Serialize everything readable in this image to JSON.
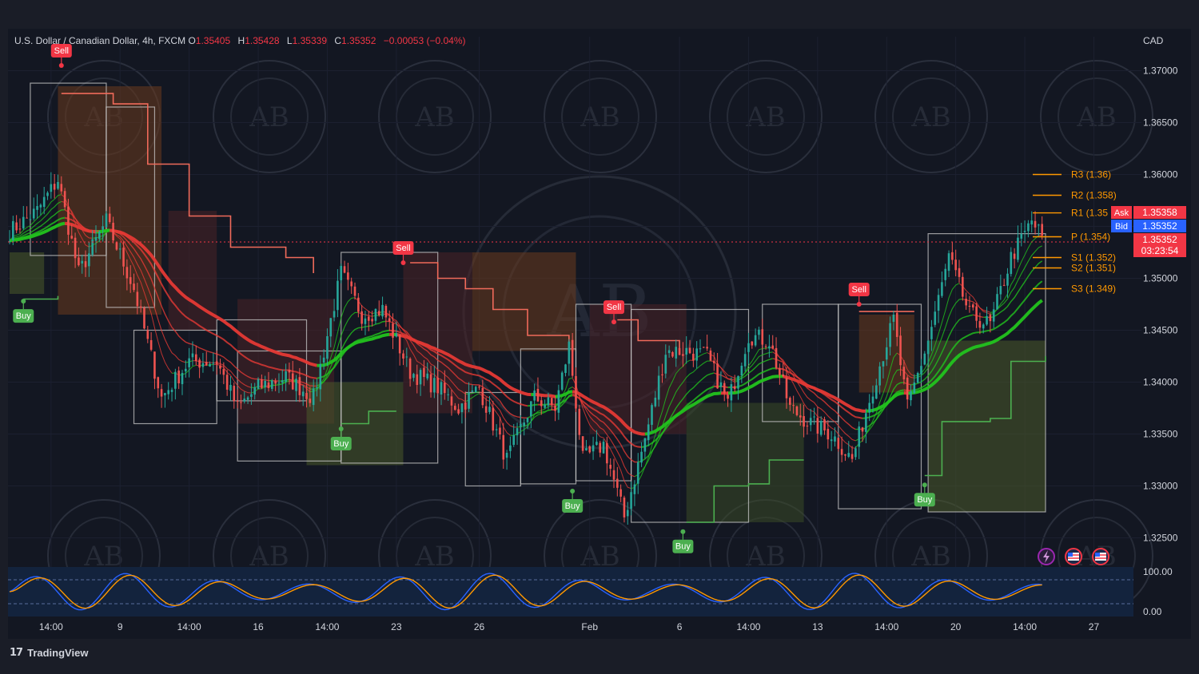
{
  "header": {
    "symbol": "U.S. Dollar / Canadian Dollar, 4h, FXCM",
    "o_label": "O",
    "o": "1.35405",
    "h_label": "H",
    "h": "1.35428",
    "l_label": "L",
    "l": "1.35339",
    "c_label": "C",
    "c": "1.35352",
    "change": "−0.00053 (−0.04%)"
  },
  "currency": "CAD",
  "brand": "TradingView",
  "quote": {
    "ask_label": "Ask",
    "ask": "1.35358",
    "bid_label": "Bid",
    "bid": "1.35352",
    "last": "1.35352",
    "countdown": "03:23:54"
  },
  "pivots": [
    {
      "label": "R3 (1.36)",
      "value": 1.36
    },
    {
      "label": "R2 (1.358)",
      "value": 1.358
    },
    {
      "label": "R1 (1.35",
      "value": 1.3563
    },
    {
      "label": "P (1.354)",
      "value": 1.354
    },
    {
      "label": "S1 (1.352)",
      "value": 1.352
    },
    {
      "label": "S2 (1.351)",
      "value": 1.351
    },
    {
      "label": "S3 (1.349)",
      "value": 1.349
    }
  ],
  "icons": [
    "lightning-icon",
    "us-flag-icon",
    "us-flag-icon"
  ],
  "colors": {
    "background": "#131722",
    "up": "#26a69a",
    "down": "#ef5350",
    "ema_red": "#e53935",
    "ema_green": "#22c31e",
    "buy": "#4caf50",
    "sell": "#f23645",
    "pivot": "#ff9800",
    "ask": "#f23645",
    "bid": "#2962ff"
  },
  "chart_data": {
    "type": "candlestick",
    "ylim": [
      1.3225,
      1.3725
    ],
    "y_ticks": [
      {
        "label": "1.37000",
        "value": 1.37
      },
      {
        "label": "1.36500",
        "value": 1.365
      },
      {
        "label": "1.36000",
        "value": 1.36
      },
      {
        "label": "1.35500",
        "value": 1.355
      },
      {
        "label": "1.35000",
        "value": 1.35
      },
      {
        "label": "1.34500",
        "value": 1.345
      },
      {
        "label": "1.34000",
        "value": 1.34
      },
      {
        "label": "1.33500",
        "value": 1.335
      },
      {
        "label": "1.33000",
        "value": 1.33
      },
      {
        "label": "1.32500",
        "value": 1.325
      }
    ],
    "x_ticks": [
      {
        "label": "14:00",
        "index": 12
      },
      {
        "label": "9",
        "index": 32
      },
      {
        "label": "14:00",
        "index": 52
      },
      {
        "label": "16",
        "index": 72
      },
      {
        "label": "14:00",
        "index": 92
      },
      {
        "label": "23",
        "index": 112
      },
      {
        "label": "26",
        "index": 136
      },
      {
        "label": "Feb",
        "index": 168
      },
      {
        "label": "6",
        "index": 194
      },
      {
        "label": "14:00",
        "index": 214
      },
      {
        "label": "13",
        "index": 234
      },
      {
        "label": "14:00",
        "index": 254
      },
      {
        "label": "20",
        "index": 274
      },
      {
        "label": "14:00",
        "index": 294
      },
      {
        "label": "27",
        "index": 314
      }
    ],
    "bars": 300,
    "close_path": [
      [
        0,
        1.3545
      ],
      [
        8,
        1.3565
      ],
      [
        14,
        1.3595
      ],
      [
        20,
        1.3505
      ],
      [
        28,
        1.3555
      ],
      [
        36,
        1.349
      ],
      [
        44,
        1.3385
      ],
      [
        52,
        1.342
      ],
      [
        60,
        1.342
      ],
      [
        66,
        1.3375
      ],
      [
        72,
        1.3395
      ],
      [
        80,
        1.3405
      ],
      [
        88,
        1.3385
      ],
      [
        96,
        1.3505
      ],
      [
        102,
        1.3465
      ],
      [
        108,
        1.347
      ],
      [
        116,
        1.341
      ],
      [
        124,
        1.3395
      ],
      [
        130,
        1.3375
      ],
      [
        136,
        1.3395
      ],
      [
        144,
        1.3325
      ],
      [
        152,
        1.3385
      ],
      [
        158,
        1.3375
      ],
      [
        162,
        1.3435
      ],
      [
        166,
        1.3325
      ],
      [
        172,
        1.334
      ],
      [
        178,
        1.327
      ],
      [
        184,
        1.3345
      ],
      [
        190,
        1.343
      ],
      [
        196,
        1.343
      ],
      [
        202,
        1.3425
      ],
      [
        208,
        1.338
      ],
      [
        214,
        1.3445
      ],
      [
        220,
        1.344
      ],
      [
        226,
        1.3375
      ],
      [
        232,
        1.336
      ],
      [
        238,
        1.335
      ],
      [
        244,
        1.3325
      ],
      [
        250,
        1.3395
      ],
      [
        256,
        1.346
      ],
      [
        260,
        1.3375
      ],
      [
        266,
        1.344
      ],
      [
        272,
        1.352
      ],
      [
        278,
        1.3465
      ],
      [
        284,
        1.3455
      ],
      [
        290,
        1.352
      ],
      [
        296,
        1.3555
      ],
      [
        300,
        1.3535
      ]
    ],
    "signals": [
      {
        "label": "Sell",
        "index": 15,
        "price": 1.3705
      },
      {
        "label": "Buy",
        "index": 4,
        "price": 1.3478
      },
      {
        "label": "Sell",
        "index": 114,
        "price": 1.3515
      },
      {
        "label": "Buy",
        "index": 96,
        "price": 1.3355
      },
      {
        "label": "Sell",
        "index": 175,
        "price": 1.3458
      },
      {
        "label": "Buy",
        "index": 163,
        "price": 1.3295
      },
      {
        "label": "Buy",
        "index": 195,
        "price": 1.3256
      },
      {
        "label": "Sell",
        "index": 246,
        "price": 1.3475
      },
      {
        "label": "Buy",
        "index": 265,
        "price": 1.3301
      }
    ],
    "oscillator": {
      "ylim": [
        0,
        100
      ],
      "ticks": [
        {
          "label": "100.00",
          "value": 100
        },
        {
          "label": "0.00",
          "value": 0
        }
      ]
    }
  }
}
